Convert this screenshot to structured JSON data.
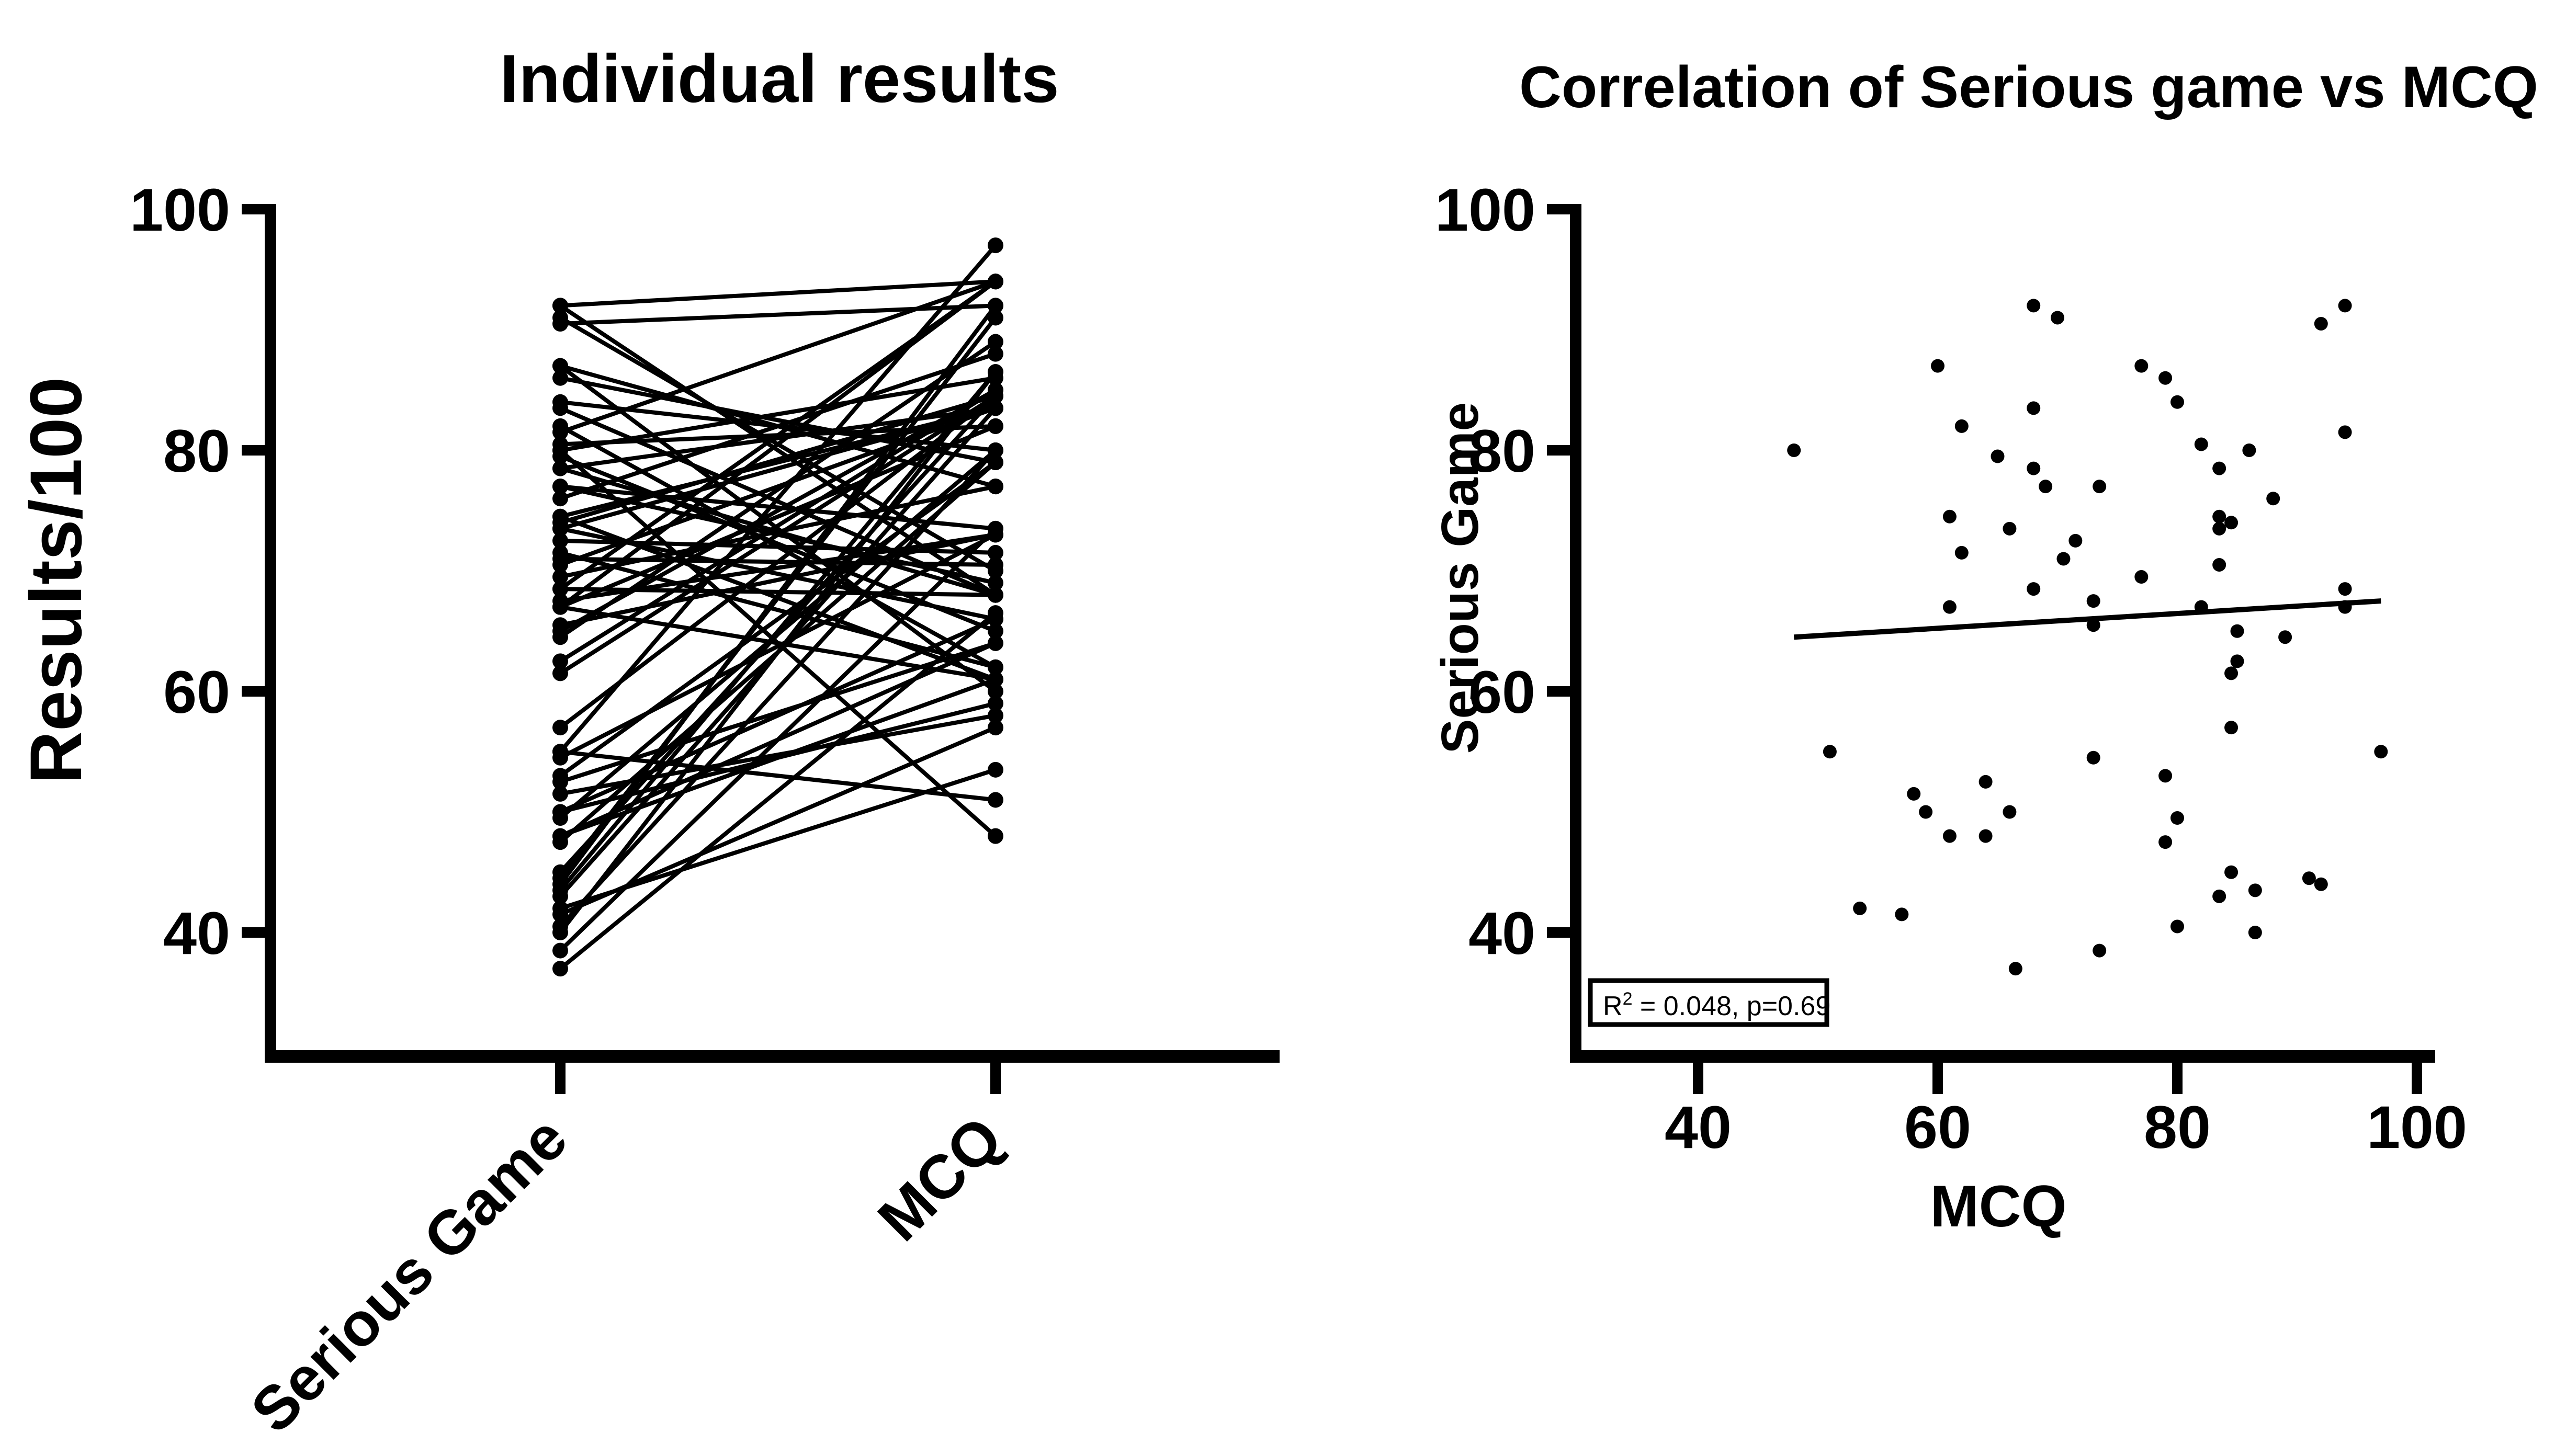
{
  "colors": {
    "ink": "#000000",
    "background": "#ffffff"
  },
  "charts": {
    "left": {
      "title": "Individual results",
      "y_axis": {
        "label": "Results/100",
        "ticks": [
          100,
          80,
          60,
          40
        ]
      },
      "x_categories": [
        "Serious Game",
        "MCQ"
      ]
    },
    "right": {
      "title": "Correlation of Serious game vs MCQ",
      "x_axis": {
        "label": "MCQ",
        "ticks": [
          40,
          60,
          80,
          100
        ]
      },
      "y_axis": {
        "label": "Serious Game",
        "ticks": [
          100,
          80,
          60,
          40
        ]
      },
      "annotation": {
        "base": "R",
        "sup": "2",
        "rest": " = 0.048, p=0.69"
      }
    }
  },
  "chart_data": [
    {
      "type": "line",
      "subtype": "paired-slope",
      "title": "Individual results",
      "xlabel": "",
      "ylabel": "Results/100",
      "categories": [
        "Serious Game",
        "MCQ"
      ],
      "yticks": [
        40,
        60,
        80,
        100
      ],
      "ylim": [
        30,
        100
      ],
      "grid": false,
      "legend": false,
      "pairs_note": "each line is one individual: [Serious Game score, MCQ score]",
      "pairs": [
        [
          80,
          48
        ],
        [
          55,
          51
        ],
        [
          42,
          53.5
        ],
        [
          41.5,
          57
        ],
        [
          51.5,
          58
        ],
        [
          50,
          59
        ],
        [
          87,
          60
        ],
        [
          74.5,
          61
        ],
        [
          67,
          61
        ],
        [
          48,
          61
        ],
        [
          82,
          62
        ],
        [
          71.5,
          62
        ],
        [
          52.5,
          64
        ],
        [
          48,
          64
        ],
        [
          79.5,
          65
        ],
        [
          73.5,
          66
        ],
        [
          50,
          66
        ],
        [
          37,
          66.5
        ],
        [
          92,
          68
        ],
        [
          83.5,
          68
        ],
        [
          78.5,
          68
        ],
        [
          68.5,
          68
        ],
        [
          77,
          69
        ],
        [
          91,
          70
        ],
        [
          71,
          70.5
        ],
        [
          72.5,
          71.5
        ],
        [
          67.5,
          73
        ],
        [
          65.5,
          73
        ],
        [
          54.5,
          73
        ],
        [
          77,
          73.5
        ],
        [
          38.5,
          73.5
        ],
        [
          87,
          77
        ],
        [
          69.5,
          77
        ],
        [
          86,
          79
        ],
        [
          53,
          79
        ],
        [
          47.5,
          79
        ],
        [
          84,
          80
        ],
        [
          49.5,
          80
        ],
        [
          40.5,
          80
        ],
        [
          80.5,
          82
        ],
        [
          67,
          82
        ],
        [
          78.5,
          83.5
        ],
        [
          74.5,
          83.5
        ],
        [
          73.5,
          83.5
        ],
        [
          70.5,
          83.5
        ],
        [
          43,
          83.5
        ],
        [
          74,
          84.5
        ],
        [
          61.5,
          84.5
        ],
        [
          57,
          84.5
        ],
        [
          45,
          84.5
        ],
        [
          65,
          85
        ],
        [
          62.5,
          85
        ],
        [
          80,
          86
        ],
        [
          43.5,
          86.5
        ],
        [
          40,
          86.5
        ],
        [
          76,
          88
        ],
        [
          64.5,
          89
        ],
        [
          44.5,
          91
        ],
        [
          90.5,
          92
        ],
        [
          44,
          92
        ],
        [
          92,
          94
        ],
        [
          81.5,
          94
        ],
        [
          68.5,
          94
        ],
        [
          67,
          94
        ],
        [
          55,
          97
        ]
      ]
    },
    {
      "type": "scatter",
      "title": "Correlation of Serious game vs MCQ",
      "xlabel": "MCQ",
      "ylabel": "Serious Game",
      "xticks": [
        40,
        60,
        80,
        100
      ],
      "yticks": [
        40,
        60,
        80,
        100
      ],
      "xlim": [
        30,
        101.5
      ],
      "ylim": [
        30,
        100
      ],
      "grid": false,
      "legend": false,
      "points_note": "[MCQ, Serious Game] per individual",
      "points": [
        [
          48,
          80
        ],
        [
          51,
          55
        ],
        [
          53.5,
          42
        ],
        [
          57,
          41.5
        ],
        [
          58,
          51.5
        ],
        [
          59,
          50
        ],
        [
          60,
          87
        ],
        [
          61,
          74.5
        ],
        [
          61,
          67
        ],
        [
          61,
          48
        ],
        [
          62,
          82
        ],
        [
          62,
          71.5
        ],
        [
          64,
          52.5
        ],
        [
          64,
          48
        ],
        [
          65,
          79.5
        ],
        [
          66,
          73.5
        ],
        [
          66,
          50
        ],
        [
          66.5,
          37
        ],
        [
          68,
          92
        ],
        [
          68,
          83.5
        ],
        [
          68,
          78.5
        ],
        [
          68,
          68.5
        ],
        [
          69,
          77
        ],
        [
          70,
          91
        ],
        [
          70.5,
          71
        ],
        [
          71.5,
          72.5
        ],
        [
          73,
          67.5
        ],
        [
          73,
          65.5
        ],
        [
          73,
          54.5
        ],
        [
          73.5,
          77
        ],
        [
          73.5,
          38.5
        ],
        [
          77,
          87
        ],
        [
          77,
          69.5
        ],
        [
          79,
          86
        ],
        [
          79,
          53
        ],
        [
          79,
          47.5
        ],
        [
          80,
          84
        ],
        [
          80,
          49.5
        ],
        [
          80,
          40.5
        ],
        [
          82,
          80.5
        ],
        [
          82,
          67
        ],
        [
          83.5,
          78.5
        ],
        [
          83.5,
          74.5
        ],
        [
          83.5,
          73.5
        ],
        [
          83.5,
          70.5
        ],
        [
          83.5,
          43
        ],
        [
          84.5,
          74
        ],
        [
          84.5,
          61.5
        ],
        [
          84.5,
          57
        ],
        [
          84.5,
          45
        ],
        [
          85,
          65
        ],
        [
          85,
          62.5
        ],
        [
          86,
          80
        ],
        [
          86.5,
          43.5
        ],
        [
          86.5,
          40
        ],
        [
          88,
          76
        ],
        [
          89,
          64.5
        ],
        [
          91,
          44.5
        ],
        [
          92,
          90.5
        ],
        [
          92,
          44
        ],
        [
          94,
          92
        ],
        [
          94,
          81.5
        ],
        [
          94,
          68.5
        ],
        [
          94,
          67
        ],
        [
          97,
          55
        ]
      ],
      "trendline": {
        "x1": 48,
        "y1": 64.5,
        "x2": 97,
        "y2": 67.5
      },
      "annotation": "R2 = 0.048, p=0.69"
    }
  ]
}
